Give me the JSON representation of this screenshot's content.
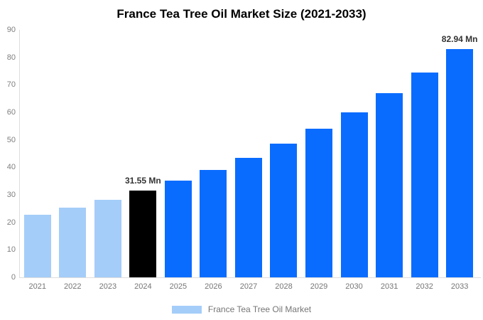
{
  "chart_data": {
    "type": "bar",
    "title": "France Tea Tree Oil Market Size (2021-2033)",
    "categories": [
      "2021",
      "2022",
      "2023",
      "2024",
      "2025",
      "2026",
      "2027",
      "2028",
      "2029",
      "2030",
      "2031",
      "2032",
      "2033"
    ],
    "values": [
      22.8,
      25.4,
      28.3,
      31.55,
      35.1,
      39.1,
      43.5,
      48.5,
      54.0,
      60.1,
      66.9,
      74.5,
      82.94
    ],
    "point_colors": [
      "#A4CDF9",
      "#A4CDF9",
      "#A4CDF9",
      "#000000",
      "#0A6CFF",
      "#0A6CFF",
      "#0A6CFF",
      "#0A6CFF",
      "#0A6CFF",
      "#0A6CFF",
      "#0A6CFF",
      "#0A6CFF",
      "#0A6CFF"
    ],
    "annotations": [
      {
        "index": 3,
        "text": "31.55 Mn"
      },
      {
        "index": 12,
        "text": "82.94 Mn"
      }
    ],
    "xlabel": "",
    "ylabel": "",
    "ylim": [
      0,
      90
    ],
    "y_ticks": [
      0,
      10,
      20,
      30,
      40,
      50,
      60,
      70,
      80,
      90
    ],
    "grid": false,
    "legend_position": "bottom"
  },
  "legend": {
    "label": "France Tea Tree Oil Market",
    "swatch_color": "#A4CDF9"
  },
  "colors": {
    "historical_bar": "#A4CDF9",
    "base_year_bar": "#000000",
    "forecast_bar": "#0A6CFF",
    "title_text": "#000000",
    "axis_label_text": "#757575",
    "annotation_text": "#333333",
    "axis_line": "#dddddd",
    "background": "#ffffff"
  }
}
